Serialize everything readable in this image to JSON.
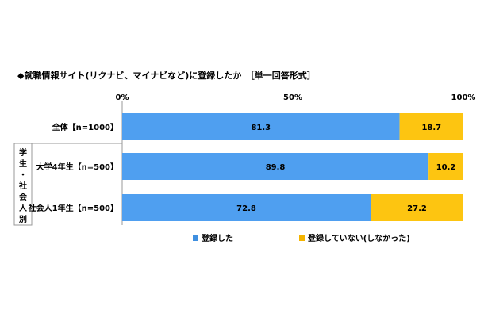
{
  "chart_data": {
    "type": "bar",
    "orientation": "horizontal",
    "stacked": true,
    "title": "◆就職情報サイト(リクナビ、マイナビなど)に登録したか　［単一回答形式］",
    "xlim": [
      0,
      100
    ],
    "x_ticks": [
      "0%",
      "50%",
      "100%"
    ],
    "categories": [
      "全体【n=1000】",
      "大学4年生【n=500】",
      "社会人1年生【n=500】"
    ],
    "group_label": "学生・社会人別",
    "series": [
      {
        "name": "登録した",
        "values": [
          81.3,
          89.8,
          72.8
        ],
        "value_labels": [
          "81.3",
          "89.8",
          "72.8"
        ]
      },
      {
        "name": "登録していない(しなかった)",
        "values": [
          18.7,
          10.2,
          27.2
        ],
        "value_labels": [
          "18.7",
          "10.2",
          "27.2"
        ]
      }
    ],
    "legend_position": "bottom",
    "grid": false
  },
  "colors": {
    "registered": "#4f9ff0",
    "not_registered": "#fdc511",
    "legend_registered_marker": "#3f8fe0",
    "legend_not_registered_marker": "#f4b400",
    "axis": "#999999"
  }
}
